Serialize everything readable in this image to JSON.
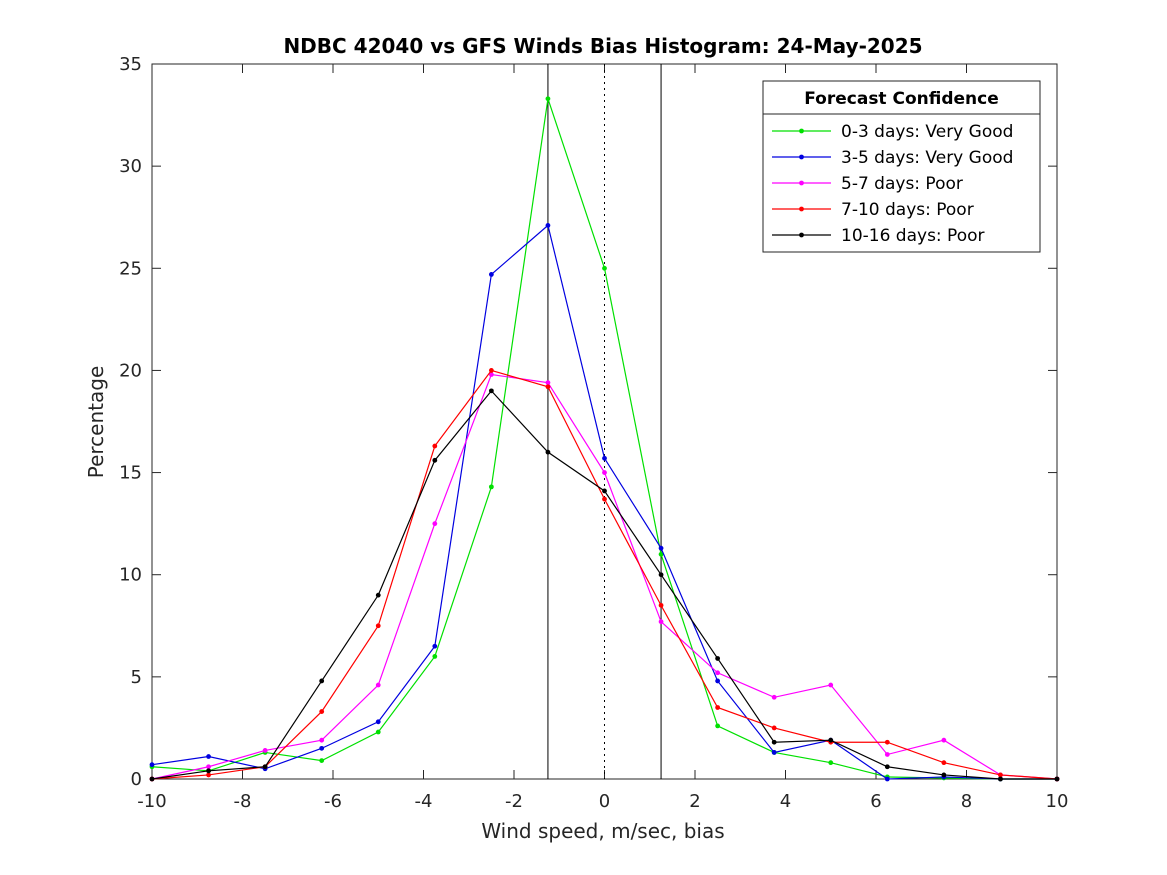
{
  "chart_data": {
    "type": "line",
    "title": "NDBC 42040 vs GFS Winds Bias Histogram: 24-May-2025",
    "xlabel": "Wind speed, m/sec, bias",
    "ylabel": "Percentage",
    "xlim": [
      -10,
      10
    ],
    "ylim": [
      0,
      35
    ],
    "xticks": [
      -10,
      -8,
      -6,
      -4,
      -2,
      0,
      2,
      4,
      6,
      8,
      10
    ],
    "yticks": [
      0,
      5,
      10,
      15,
      20,
      25,
      30,
      35
    ],
    "grid": false,
    "legend": {
      "title": "Forecast Confidence",
      "position": "top-right"
    },
    "reference_lines": [
      {
        "x": -1.25,
        "style": "solid"
      },
      {
        "x": 0,
        "style": "dotted"
      },
      {
        "x": 1.25,
        "style": "solid"
      }
    ],
    "x": [
      -10,
      -8.75,
      -7.5,
      -6.25,
      -5,
      -3.75,
      -2.5,
      -1.25,
      0,
      1.25,
      2.5,
      3.75,
      5,
      6.25,
      7.5,
      8.75,
      10
    ],
    "series": [
      {
        "name": "0-3 days: Very Good",
        "color": "#00e000",
        "values": [
          0.6,
          0.4,
          1.3,
          0.9,
          2.3,
          6.0,
          14.3,
          33.3,
          25.0,
          11.0,
          2.6,
          1.3,
          0.8,
          0.1,
          0.05,
          0.0,
          0.0
        ]
      },
      {
        "name": "3-5 days: Very Good",
        "color": "#0000e0",
        "values": [
          0.7,
          1.1,
          0.5,
          1.5,
          2.8,
          6.5,
          24.7,
          27.1,
          15.7,
          11.3,
          4.8,
          1.3,
          1.9,
          0.0,
          0.1,
          0.0,
          0.0
        ]
      },
      {
        "name": "5-7 days: Poor",
        "color": "#ff00ff",
        "values": [
          0.0,
          0.6,
          1.4,
          1.9,
          4.6,
          12.5,
          19.8,
          19.4,
          15.0,
          7.7,
          5.2,
          4.0,
          4.6,
          1.2,
          1.9,
          0.2,
          0.0
        ]
      },
      {
        "name": "7-10 days: Poor",
        "color": "#ff0000",
        "values": [
          0.0,
          0.2,
          0.6,
          3.3,
          7.5,
          16.3,
          20.0,
          19.2,
          13.7,
          8.5,
          3.5,
          2.5,
          1.8,
          1.8,
          0.8,
          0.2,
          0.0
        ]
      },
      {
        "name": "10-16 days: Poor",
        "color": "#000000",
        "values": [
          0.0,
          0.4,
          0.6,
          4.8,
          9.0,
          15.6,
          19.0,
          16.0,
          14.1,
          10.0,
          5.9,
          1.8,
          1.9,
          0.6,
          0.2,
          0.0,
          0.0
        ]
      }
    ]
  }
}
